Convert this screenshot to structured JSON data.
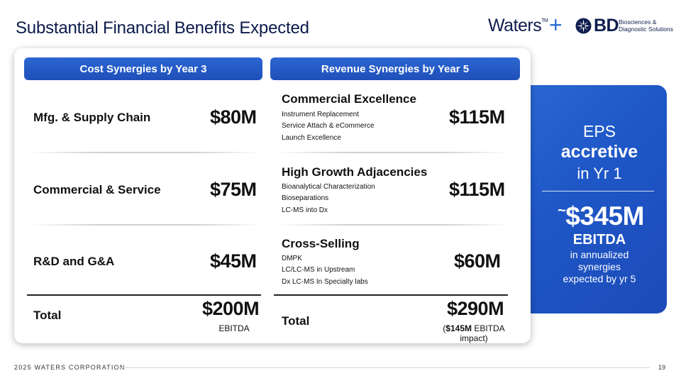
{
  "title": "Substantial Financial Benefits Expected",
  "logos": {
    "waters": "Waters",
    "waters_tm": "TM",
    "plus": "+",
    "bd": "BD",
    "bd_sub_line1": "Biosciences &",
    "bd_sub_line2": "Diagnostic Solutions"
  },
  "cost": {
    "header": "Cost Synergies by Year 3",
    "rows": [
      {
        "label": "Mfg. & Supply Chain",
        "value": "$80M"
      },
      {
        "label": "Commercial & Service",
        "value": "$75M"
      },
      {
        "label": "R&D and G&A",
        "value": "$45M"
      }
    ],
    "total_label": "Total",
    "total_value": "$200M",
    "total_note": "EBITDA"
  },
  "revenue": {
    "header": "Revenue Synergies by Year 5",
    "rows": [
      {
        "category": "Commercial Excellence",
        "items": [
          "Instrument Replacement",
          "Service Attach & eCommerce",
          "Launch Excellence"
        ],
        "value": "$115M"
      },
      {
        "category": "High Growth Adjacencies",
        "items": [
          "Bioanalytical Characterization",
          "Bioseparations",
          "LC-MS into Dx"
        ],
        "value": "$115M"
      },
      {
        "category": "Cross-Selling",
        "items": [
          "DMPK",
          "LC/LC-MS in Upstream",
          "Dx LC-MS In Specialty labs"
        ],
        "value": "$60M"
      }
    ],
    "total_label": "Total",
    "total_value": "$290M",
    "total_note_open": "(",
    "total_note_bold": "$145M",
    "total_note_rest": " EBITDA",
    "total_note_line2": "impact)"
  },
  "summary": {
    "eps": "EPS",
    "accretive": "accretive",
    "in_yr": "in Yr 1",
    "tilde": "~",
    "amount": "$345M",
    "ebitda": "EBITDA",
    "line1": "in annualized",
    "line2": "synergies",
    "line3": "expected by yr 5"
  },
  "footer": {
    "company": "2025 WATERS CORPORATION",
    "page": "19"
  }
}
